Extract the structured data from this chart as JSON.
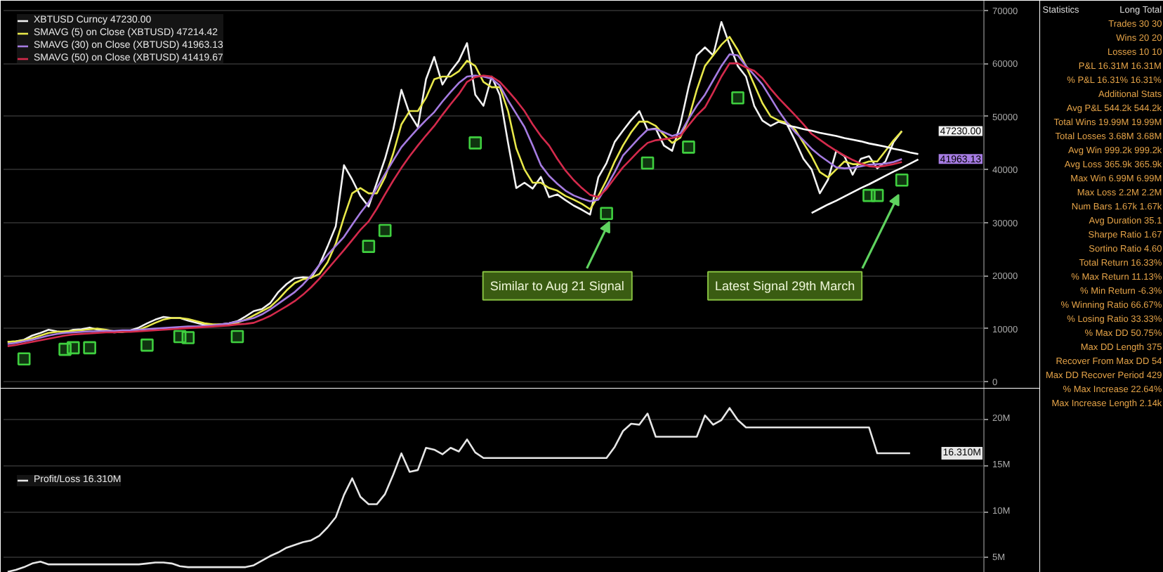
{
  "chart_data": [
    {
      "type": "line",
      "categories": [
        null,
        null,
        null,
        null,
        null,
        null,
        null,
        null,
        null,
        null,
        null,
        null,
        null,
        null,
        null,
        null,
        null,
        null,
        null,
        null,
        null,
        null,
        null,
        null,
        null,
        null,
        null,
        null,
        null,
        null,
        null,
        null,
        null,
        null,
        null,
        null,
        null,
        null,
        null,
        null,
        null,
        null,
        null,
        null,
        null,
        null,
        null,
        null,
        null,
        null,
        null,
        null,
        null,
        null,
        null,
        null,
        null,
        null,
        null,
        null,
        null,
        null,
        null,
        null,
        null,
        null,
        null,
        null,
        null,
        null,
        null,
        null,
        null,
        null,
        null,
        null,
        null,
        null,
        null,
        null,
        null,
        null,
        null,
        null,
        null,
        null,
        null,
        null,
        null,
        null,
        null,
        null,
        null,
        null,
        null,
        null,
        null,
        null,
        null,
        null,
        null,
        null,
        null,
        null,
        null,
        null,
        null,
        null,
        null,
        null,
        null,
        null,
        null,
        null,
        null
      ],
      "series": [
        {
          "name": "XBTUSD Curncy 47230.00",
          "color": "#f2f2f2",
          "values": [
            7500,
            7600,
            7900,
            8700,
            9200,
            9800,
            9500,
            9300,
            9800,
            9900,
            10200,
            9800,
            9500,
            9300,
            9400,
            9700,
            10200,
            11000,
            11700,
            12200,
            12000,
            12000,
            11500,
            11100,
            10700,
            10600,
            10800,
            11000,
            11400,
            12300,
            13300,
            13700,
            14800,
            16900,
            18400,
            19500,
            19700,
            19600,
            22000,
            25500,
            29300,
            40800,
            38100,
            35000,
            33000,
            37500,
            42000,
            47500,
            55000,
            50500,
            48000,
            57000,
            61200,
            56000,
            58500,
            60500,
            63800,
            54100,
            52000,
            57500,
            54000,
            45000,
            36500,
            37500,
            36400,
            38600,
            34800,
            35300,
            34200,
            33200,
            32400,
            31500,
            38500,
            41200,
            45200,
            47300,
            49300,
            51000,
            47500,
            47700,
            44500,
            43500,
            48500,
            55500,
            61500,
            63000,
            61500,
            67800,
            63500,
            59500,
            57500,
            52000,
            49200,
            48200,
            49000,
            48500,
            45400,
            42000,
            40000,
            35500,
            38100,
            43500,
            42500,
            39000,
            42000,
            42500,
            40200,
            41500,
            45200,
            47230,
            null,
            null,
            null,
            null,
            null
          ]
        },
        {
          "name": "SMAVG (5) on Close (XBTUSD) 47214.42",
          "color": "#e8e84a",
          "values": [
            7500,
            7600,
            7800,
            8200,
            8700,
            9200,
            9400,
            9500,
            9600,
            9700,
            9900,
            10000,
            9800,
            9500,
            9400,
            9500,
            9800,
            10400,
            11100,
            11700,
            12000,
            12000,
            11800,
            11400,
            11000,
            10800,
            10800,
            10900,
            11100,
            11700,
            12500,
            13300,
            14100,
            15500,
            17200,
            18600,
            19300,
            19600,
            20300,
            22500,
            26000,
            31000,
            35500,
            36500,
            35500,
            35500,
            38500,
            43000,
            48500,
            51000,
            51000,
            53500,
            57000,
            57500,
            57500,
            58500,
            60500,
            59500,
            56500,
            55500,
            55500,
            51000,
            44000,
            40000,
            37500,
            37500,
            36500,
            36000,
            35000,
            34300,
            33500,
            32500,
            35000,
            38000,
            41500,
            44500,
            47000,
            49000,
            49000,
            48200,
            46500,
            45000,
            46000,
            49500,
            55000,
            59500,
            61500,
            63500,
            65000,
            62500,
            59500,
            56000,
            52500,
            50000,
            49200,
            48800,
            47500,
            45000,
            42500,
            39500,
            38500,
            40000,
            41500,
            41000,
            41000,
            41500,
            41500,
            43500,
            45500,
            47214.42,
            null,
            null,
            null,
            null,
            null
          ]
        },
        {
          "name": "SMAVG (30) on Close (XBTUSD) 41963.13",
          "color": "#a67ce2",
          "values": [
            7100,
            7300,
            7600,
            7900,
            8300,
            8700,
            9000,
            9200,
            9300,
            9400,
            9500,
            9500,
            9600,
            9600,
            9700,
            9700,
            9800,
            9900,
            10000,
            10100,
            10200,
            10300,
            10400,
            10400,
            10500,
            10600,
            10800,
            11000,
            11300,
            11600,
            12000,
            12700,
            13600,
            14700,
            15800,
            16900,
            18300,
            20000,
            22000,
            23900,
            25600,
            27300,
            29600,
            31800,
            33800,
            36500,
            39100,
            41700,
            44200,
            46000,
            47700,
            49300,
            50800,
            52800,
            54600,
            56300,
            57500,
            57700,
            57500,
            57100,
            55800,
            53000,
            50500,
            48000,
            44500,
            40800,
            38800,
            37300,
            36000,
            35100,
            34500,
            34000,
            34300,
            36800,
            39500,
            42600,
            44300,
            46000,
            47500,
            47600,
            47000,
            46300,
            46800,
            49500,
            52000,
            54100,
            56800,
            59500,
            61700,
            61500,
            59500,
            57800,
            56000,
            53500,
            51000,
            48800,
            47000,
            45500,
            43900,
            42600,
            41500,
            40400,
            40200,
            40300,
            40600,
            40900,
            41000,
            41100,
            41400,
            41963.13,
            null,
            null,
            null,
            null,
            null
          ]
        },
        {
          "name": "SMAVG (50) on Close (XBTUSD) 41419.67",
          "color": "#d42a4c",
          "values": [
            6700,
            6900,
            7200,
            7500,
            7800,
            8100,
            8400,
            8700,
            8900,
            9000,
            9100,
            9200,
            9300,
            9300,
            9400,
            9400,
            9500,
            9600,
            9700,
            9800,
            9900,
            10000,
            10100,
            10200,
            10300,
            10400,
            10500,
            10600,
            10800,
            10900,
            11100,
            11700,
            12400,
            13300,
            14200,
            15200,
            16400,
            17800,
            19400,
            21200,
            23000,
            24800,
            26700,
            28600,
            30200,
            32600,
            35300,
            37900,
            40300,
            42500,
            44500,
            46400,
            48200,
            50300,
            52300,
            54200,
            56500,
            57400,
            57700,
            57500,
            56500,
            54800,
            53000,
            51000,
            48500,
            46300,
            44500,
            42000,
            39800,
            38000,
            36500,
            35200,
            34800,
            36300,
            38400,
            40400,
            42000,
            43600,
            45000,
            45500,
            45700,
            45900,
            46300,
            48300,
            50200,
            51700,
            54500,
            57500,
            60000,
            60000,
            59200,
            58600,
            57200,
            55200,
            53400,
            51800,
            50200,
            48500,
            46700,
            45600,
            44500,
            43500,
            42600,
            41800,
            41100,
            40600,
            40500,
            40700,
            41000,
            41419.67,
            null,
            null,
            null,
            null,
            null
          ]
        },
        {
          "type": "scatter",
          "marker": "square",
          "color": "#3fcf3f",
          "values": [
            null,
            null,
            4300,
            null,
            null,
            null,
            null,
            6100,
            6400,
            null,
            6400,
            null,
            null,
            null,
            null,
            null,
            null,
            6900,
            null,
            null,
            null,
            8500,
            8300,
            null,
            null,
            null,
            null,
            null,
            8500,
            null,
            null,
            null,
            null,
            null,
            null,
            null,
            null,
            null,
            null,
            null,
            null,
            null,
            null,
            null,
            25500,
            null,
            28500,
            null,
            null,
            null,
            null,
            null,
            null,
            null,
            null,
            null,
            null,
            45000,
            null,
            null,
            null,
            null,
            null,
            null,
            null,
            null,
            null,
            null,
            null,
            null,
            null,
            null,
            null,
            31700,
            null,
            null,
            null,
            null,
            41200,
            null,
            null,
            null,
            null,
            44200,
            null,
            null,
            null,
            null,
            null,
            53500,
            null,
            null,
            null,
            null,
            null,
            null,
            null,
            null,
            null,
            null,
            null,
            null,
            null,
            null,
            null,
            35100,
            35100,
            null,
            null,
            38000,
            null,
            null,
            null,
            null,
            null
          ]
        },
        {
          "type": "line",
          "color": "#ffffff",
          "values": [
            null,
            null,
            null,
            null,
            null,
            null,
            null,
            null,
            null,
            null,
            null,
            null,
            null,
            null,
            null,
            null,
            null,
            null,
            null,
            null,
            null,
            null,
            null,
            null,
            null,
            null,
            null,
            null,
            null,
            null,
            null,
            null,
            null,
            null,
            null,
            null,
            null,
            null,
            null,
            null,
            null,
            null,
            null,
            null,
            null,
            null,
            null,
            null,
            null,
            null,
            null,
            null,
            null,
            null,
            null,
            null,
            null,
            null,
            null,
            null,
            null,
            null,
            null,
            null,
            null,
            null,
            null,
            null,
            null,
            null,
            null,
            null,
            null,
            null,
            null,
            null,
            null,
            null,
            null,
            null,
            null,
            null,
            null,
            null,
            null,
            null,
            null,
            null,
            null,
            null,
            null,
            null,
            null,
            null,
            null,
            48300,
            48000,
            47600,
            47300,
            46900,
            46600,
            46300,
            45900,
            45600,
            45300,
            44900,
            44600,
            44300,
            43900,
            43600,
            43200,
            42900,
            null,
            null,
            null
          ]
        },
        {
          "type": "line",
          "color": "#ffffff",
          "values": [
            null,
            null,
            null,
            null,
            null,
            null,
            null,
            null,
            null,
            null,
            null,
            null,
            null,
            null,
            null,
            null,
            null,
            null,
            null,
            null,
            null,
            null,
            null,
            null,
            null,
            null,
            null,
            null,
            null,
            null,
            null,
            null,
            null,
            null,
            null,
            null,
            null,
            null,
            null,
            null,
            null,
            null,
            null,
            null,
            null,
            null,
            null,
            null,
            null,
            null,
            null,
            null,
            null,
            null,
            null,
            null,
            null,
            null,
            null,
            null,
            null,
            null,
            null,
            null,
            null,
            null,
            null,
            null,
            null,
            null,
            null,
            null,
            null,
            null,
            null,
            null,
            null,
            null,
            null,
            null,
            null,
            null,
            null,
            null,
            null,
            null,
            null,
            null,
            null,
            null,
            null,
            null,
            null,
            null,
            null,
            null,
            null,
            null,
            31800,
            32600,
            33400,
            34100,
            34900,
            35700,
            36500,
            37200,
            38000,
            38800,
            39600,
            40300,
            41100,
            41900,
            null,
            null,
            null
          ]
        }
      ],
      "ylim": [
        -1300,
        71800
      ],
      "yticks": [
        0,
        10000,
        20000,
        30000,
        40000,
        50000,
        60000,
        70000
      ],
      "grid": "y",
      "legend": "top left",
      "tick_labels": "y",
      "annotations": [
        "Similar to Aug 21 Signal",
        "Latest Signal 29th March",
        "47230.00",
        "41963.13"
      ]
    },
    {
      "type": "line",
      "categories": [
        null,
        null,
        null,
        null,
        null,
        null,
        null,
        null,
        null,
        null,
        null,
        null,
        null,
        null,
        null,
        null,
        null,
        null,
        null,
        null,
        null,
        null,
        null,
        null,
        null,
        null,
        null,
        null,
        null,
        null,
        null,
        null,
        null,
        null,
        null,
        null,
        null,
        null,
        null,
        null,
        null,
        null,
        null,
        null,
        null,
        null,
        null,
        null,
        null,
        null,
        null,
        null,
        null,
        null,
        null,
        null,
        null,
        null,
        null,
        null,
        null,
        null,
        null,
        null,
        null,
        null,
        null,
        null,
        null,
        null,
        null,
        null,
        null,
        null,
        null,
        null,
        null,
        null,
        null,
        null,
        null,
        null,
        null,
        null,
        null,
        null,
        null,
        null,
        null,
        null,
        null,
        null,
        null,
        null,
        null,
        null,
        null,
        null,
        null,
        null,
        null,
        null,
        null,
        null,
        null,
        null,
        null,
        null,
        null,
        null,
        null,
        null,
        null,
        null,
        null
      ],
      "series": [
        {
          "name": "Profit/Loss 16.310M",
          "color": "#e6e6e6",
          "values": [
            3.5,
            3.7,
            4.0,
            4.4,
            4.6,
            4.3,
            4.3,
            4.3,
            4.3,
            4.3,
            4.3,
            4.3,
            4.3,
            4.3,
            4.3,
            4.3,
            4.3,
            4.4,
            4.5,
            4.5,
            4.4,
            4.1,
            4.0,
            4.0,
            4.0,
            4.0,
            4.0,
            4.0,
            4.0,
            4.0,
            4.2,
            4.7,
            5.2,
            5.6,
            6.1,
            6.4,
            6.7,
            6.9,
            7.4,
            8.3,
            9.4,
            11.8,
            13.6,
            11.6,
            10.8,
            10.8,
            11.9,
            14.0,
            16.3,
            14.3,
            14.5,
            16.9,
            16.7,
            16.2,
            16.9,
            16.5,
            17.8,
            16.4,
            15.8,
            15.8,
            15.8,
            15.8,
            15.8,
            15.8,
            15.8,
            15.8,
            15.8,
            15.8,
            15.8,
            15.8,
            15.8,
            15.8,
            15.8,
            15.8,
            17.0,
            18.7,
            19.5,
            19.4,
            20.6,
            18.1,
            18.1,
            18.1,
            18.1,
            18.1,
            18.1,
            20.4,
            19.4,
            19.9,
            21.2,
            19.9,
            19.1,
            19.1,
            19.1,
            19.1,
            19.1,
            19.1,
            19.1,
            19.1,
            19.1,
            19.1,
            19.1,
            19.1,
            19.1,
            19.1,
            19.1,
            19.1,
            16.31,
            16.31,
            16.31,
            16.31,
            16.31,
            null,
            null,
            null,
            null
          ]
        }
      ],
      "ylim": [
        3.4,
        23.3
      ],
      "yticks": [
        {
          "value": 5,
          "label": "5M"
        },
        {
          "value": 10,
          "label": "10M"
        },
        {
          "value": 15,
          "label": "15M"
        },
        {
          "value": 20,
          "label": "20M"
        }
      ],
      "grid": "y",
      "legend": "left",
      "tick_labels": "y",
      "annotations": [
        {
          "text": "16.310M",
          "y": 16.31
        }
      ]
    },
    {
      "type": "other",
      "title": "Statistics",
      "annotations": [
        "Long Total",
        "Trades 30 30",
        "Wins 20 20",
        "Losses 10 10",
        "P&L 16.31M 16.31M",
        "% P&L 16.31% 16.31%",
        "Additional Stats",
        "Avg P&L 544.2k 544.2k",
        "Total Wins 19.99M 19.99M",
        "Total Losses 3.68M 3.68M",
        "Avg Win 999.2k 999.2k",
        "Avg Loss 365.9k 365.9k",
        "Max Win 6.99M 6.99M",
        "Max Loss 2.2M 2.2M",
        "Num Bars 1.67k 1.67k",
        "Avg Duration 35.1",
        "Sharpe Ratio 1.67",
        "Sortino Ratio 4.60",
        "Total Return 16.33%",
        "% Max Return 11.13%",
        "% Min Return -6.3%",
        "% Winning Ratio 66.67%",
        "% Losing Ratio 33.33%",
        "% Max DD 50.75%",
        "Max DD Length 375",
        "Recover From Max DD 54",
        "Max DD Recover Period 429",
        "% Max Increase 22.64%",
        "Max Increase Length 2.14k"
      ]
    }
  ]
}
